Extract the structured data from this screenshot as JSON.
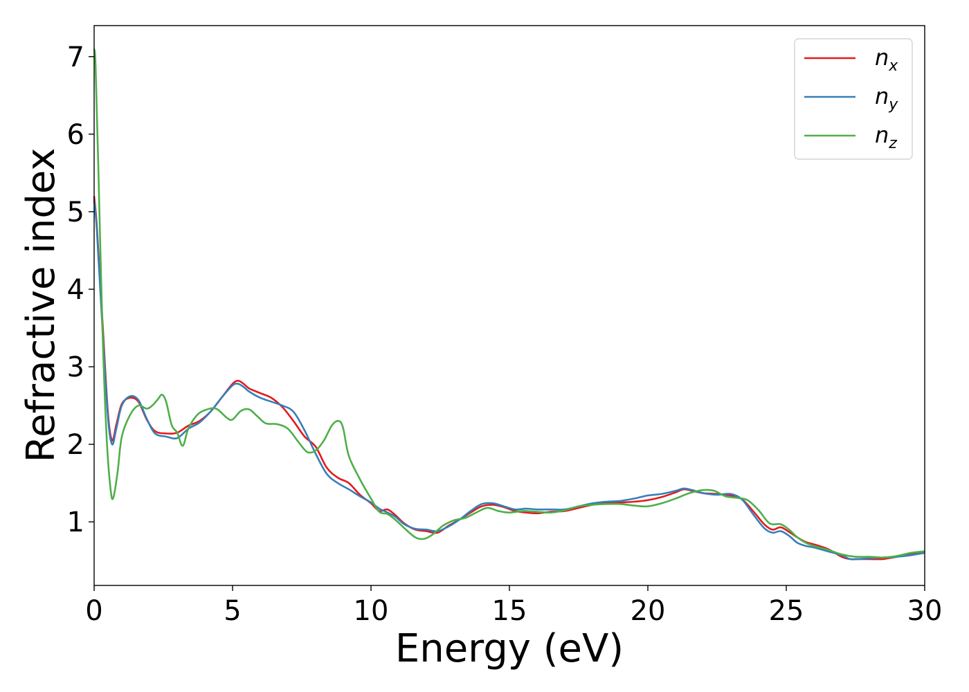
{
  "chart_data": {
    "type": "line",
    "xlabel": "Energy (eV)",
    "ylabel": "Refractive index",
    "xlim": [
      0,
      30
    ],
    "ylim": [
      0.18,
      7.4
    ],
    "xticks": [
      0,
      5,
      10,
      15,
      20,
      25,
      30
    ],
    "xtick_labels": [
      "0",
      "5",
      "10",
      "15",
      "20",
      "25",
      "30"
    ],
    "yticks": [
      1,
      2,
      3,
      4,
      5,
      6,
      7
    ],
    "ytick_labels": [
      "1",
      "2",
      "3",
      "4",
      "5",
      "6",
      "7"
    ],
    "grid": false,
    "legend_position": "top-right",
    "series": [
      {
        "name": "n_x",
        "label_main": "n",
        "label_sub": "x",
        "color": "#e41a1c",
        "x": [
          0,
          0.1,
          0.3,
          0.5,
          0.65,
          0.8,
          1.0,
          1.3,
          1.6,
          1.9,
          2.2,
          2.6,
          3.0,
          3.4,
          3.8,
          4.2,
          4.6,
          5.0,
          5.2,
          5.4,
          5.6,
          6.0,
          6.4,
          6.8,
          7.2,
          7.6,
          8.0,
          8.4,
          8.8,
          9.2,
          9.6,
          10.0,
          10.3,
          10.6,
          10.9,
          11.2,
          11.6,
          12.0,
          12.4,
          12.8,
          13.2,
          13.6,
          14.0,
          14.4,
          14.8,
          15.2,
          15.6,
          16.0,
          16.5,
          17.0,
          17.5,
          18.0,
          18.5,
          19.0,
          19.5,
          20.0,
          20.5,
          21.0,
          21.3,
          21.6,
          22.0,
          22.5,
          23.0,
          23.4,
          23.8,
          24.2,
          24.5,
          24.8,
          25.1,
          25.4,
          25.7,
          26.0,
          26.5,
          27.0,
          27.3,
          27.6,
          28.0,
          28.5,
          29.0,
          29.5,
          30.0
        ],
        "y": [
          5.2,
          4.8,
          3.6,
          2.4,
          2.05,
          2.25,
          2.52,
          2.6,
          2.55,
          2.32,
          2.17,
          2.14,
          2.15,
          2.24,
          2.3,
          2.42,
          2.6,
          2.78,
          2.82,
          2.78,
          2.72,
          2.66,
          2.6,
          2.48,
          2.3,
          2.1,
          1.97,
          1.7,
          1.57,
          1.5,
          1.35,
          1.24,
          1.14,
          1.16,
          1.08,
          0.98,
          0.9,
          0.88,
          0.86,
          0.95,
          1.03,
          1.12,
          1.2,
          1.22,
          1.19,
          1.14,
          1.12,
          1.11,
          1.13,
          1.14,
          1.18,
          1.22,
          1.24,
          1.25,
          1.26,
          1.28,
          1.32,
          1.38,
          1.42,
          1.4,
          1.37,
          1.36,
          1.34,
          1.29,
          1.14,
          0.97,
          0.9,
          0.93,
          0.87,
          0.8,
          0.74,
          0.71,
          0.65,
          0.55,
          0.52,
          0.52,
          0.52,
          0.52,
          0.55,
          0.58,
          0.6
        ]
      },
      {
        "name": "n_y",
        "label_main": "n",
        "label_sub": "y",
        "color": "#377eb8",
        "x": [
          0,
          0.1,
          0.3,
          0.5,
          0.65,
          0.8,
          1.0,
          1.3,
          1.6,
          1.9,
          2.2,
          2.6,
          3.0,
          3.4,
          3.8,
          4.2,
          4.6,
          5.0,
          5.2,
          5.4,
          5.6,
          6.0,
          6.4,
          6.8,
          7.2,
          7.6,
          8.0,
          8.4,
          8.8,
          9.2,
          9.6,
          10.0,
          10.3,
          10.6,
          10.9,
          11.2,
          11.6,
          12.0,
          12.4,
          12.8,
          13.2,
          13.6,
          14.0,
          14.4,
          14.8,
          15.2,
          15.6,
          16.0,
          16.5,
          17.0,
          17.5,
          18.0,
          18.5,
          19.0,
          19.5,
          20.0,
          20.5,
          21.0,
          21.3,
          21.6,
          22.0,
          22.5,
          23.0,
          23.4,
          23.8,
          24.2,
          24.5,
          24.8,
          25.1,
          25.4,
          25.7,
          26.0,
          26.5,
          27.0,
          27.3,
          27.6,
          28.0,
          28.5,
          29.0,
          29.5,
          30.0
        ],
        "y": [
          5.15,
          4.75,
          3.5,
          2.35,
          2.0,
          2.2,
          2.5,
          2.62,
          2.57,
          2.33,
          2.14,
          2.1,
          2.08,
          2.2,
          2.28,
          2.42,
          2.6,
          2.76,
          2.78,
          2.74,
          2.68,
          2.6,
          2.55,
          2.5,
          2.42,
          2.18,
          1.88,
          1.62,
          1.5,
          1.42,
          1.33,
          1.25,
          1.17,
          1.12,
          1.06,
          0.97,
          0.91,
          0.9,
          0.88,
          0.94,
          1.03,
          1.14,
          1.23,
          1.24,
          1.2,
          1.16,
          1.17,
          1.16,
          1.16,
          1.16,
          1.2,
          1.24,
          1.26,
          1.27,
          1.3,
          1.34,
          1.36,
          1.4,
          1.43,
          1.41,
          1.37,
          1.35,
          1.36,
          1.29,
          1.1,
          0.92,
          0.86,
          0.88,
          0.82,
          0.73,
          0.69,
          0.67,
          0.62,
          0.57,
          0.52,
          0.52,
          0.53,
          0.54,
          0.55,
          0.57,
          0.6
        ]
      },
      {
        "name": "n_z",
        "label_main": "n",
        "label_sub": "z",
        "color": "#4daf4a",
        "x": [
          0,
          0.05,
          0.15,
          0.3,
          0.45,
          0.6,
          0.7,
          0.85,
          1.0,
          1.3,
          1.6,
          1.9,
          2.1,
          2.3,
          2.45,
          2.6,
          2.8,
          3.0,
          3.2,
          3.4,
          3.7,
          4.0,
          4.4,
          4.8,
          5.0,
          5.3,
          5.6,
          5.9,
          6.2,
          6.6,
          7.0,
          7.4,
          7.7,
          8.0,
          8.3,
          8.6,
          8.85,
          9.0,
          9.2,
          9.6,
          10.0,
          10.3,
          10.6,
          10.9,
          11.2,
          11.6,
          11.9,
          12.2,
          12.6,
          13.0,
          13.4,
          13.8,
          14.2,
          14.6,
          15.0,
          15.5,
          16.0,
          16.5,
          17.0,
          17.5,
          18.0,
          18.5,
          19.0,
          19.5,
          20.0,
          20.5,
          21.0,
          21.5,
          22.0,
          22.4,
          22.8,
          23.2,
          23.6,
          24.0,
          24.4,
          24.8,
          25.1,
          25.4,
          25.7,
          26.0,
          26.5,
          27.0,
          27.5,
          28.0,
          28.5,
          29.0,
          29.5,
          30.0
        ],
        "y": [
          7.1,
          6.9,
          5.6,
          3.5,
          2.1,
          1.4,
          1.32,
          1.65,
          2.1,
          2.38,
          2.5,
          2.46,
          2.5,
          2.58,
          2.64,
          2.55,
          2.25,
          2.15,
          1.98,
          2.2,
          2.37,
          2.44,
          2.46,
          2.34,
          2.32,
          2.43,
          2.45,
          2.36,
          2.27,
          2.26,
          2.2,
          2.02,
          1.9,
          1.92,
          2.05,
          2.25,
          2.3,
          2.2,
          1.85,
          1.55,
          1.3,
          1.13,
          1.1,
          1.02,
          0.92,
          0.8,
          0.78,
          0.83,
          0.95,
          1.02,
          1.05,
          1.12,
          1.18,
          1.14,
          1.12,
          1.14,
          1.13,
          1.12,
          1.15,
          1.2,
          1.22,
          1.23,
          1.23,
          1.21,
          1.2,
          1.24,
          1.3,
          1.37,
          1.41,
          1.4,
          1.33,
          1.31,
          1.28,
          1.15,
          0.98,
          0.97,
          0.9,
          0.8,
          0.73,
          0.69,
          0.64,
          0.58,
          0.55,
          0.55,
          0.54,
          0.56,
          0.6,
          0.62
        ]
      }
    ]
  }
}
